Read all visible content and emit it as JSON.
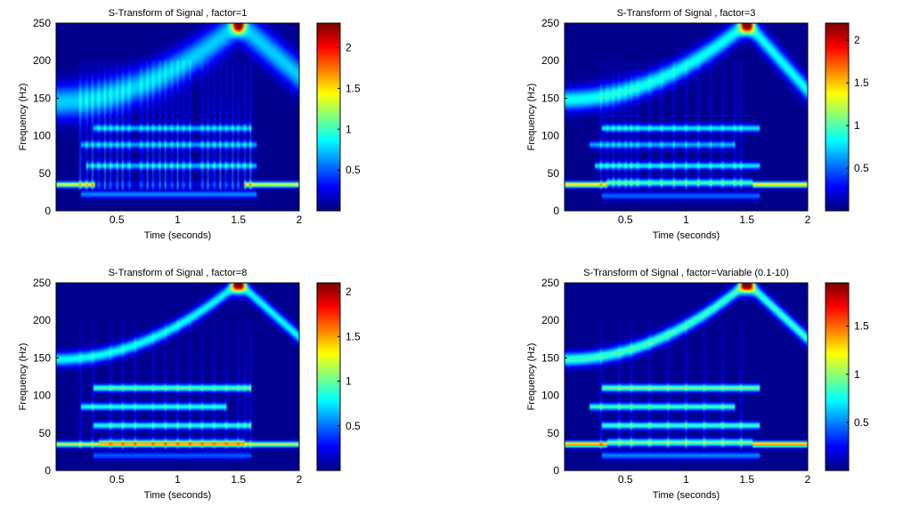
{
  "colormap": "jet",
  "colors": {
    "background": "#ffffff",
    "plot_background": "#00008f",
    "axis": "#000000"
  },
  "chart_data": [
    {
      "type": "heatmap",
      "title": "S-Transform of Signal , factor=1",
      "xlabel": "Time (seconds)",
      "ylabel": "Frequency (Hz)",
      "xlim": [
        0,
        2
      ],
      "ylim": [
        0,
        250
      ],
      "xticks": [
        0.5,
        1,
        1.5,
        2
      ],
      "yticks": [
        0,
        50,
        100,
        150,
        200,
        250
      ],
      "colorbar": {
        "ticks": [
          0.5,
          1,
          1.5,
          2
        ],
        "max": 2.3
      },
      "features": {
        "chirp": {
          "start_freq": 145,
          "end_freq": 250,
          "peak_time": 1.5,
          "descend_end_freq": 180,
          "width_hz": 35,
          "intensity": 0.75,
          "peak_intensity": 2.3
        },
        "tone": {
          "freq": 35,
          "start": 0,
          "end": 2,
          "gap": [
            0.32,
            1.55
          ],
          "intensity": 1.4
        },
        "bands": [
          {
            "freq": 110,
            "start": 0.3,
            "end": 1.6,
            "intensity": 0.7
          },
          {
            "freq": 88,
            "start": 0.2,
            "end": 1.65,
            "intensity": 0.65
          },
          {
            "freq": 60,
            "start": 0.25,
            "end": 1.65,
            "intensity": 0.7
          },
          {
            "freq": 22,
            "start": 0.2,
            "end": 1.65,
            "intensity": 0.6
          }
        ],
        "pulse_times": [
          0.2,
          0.25,
          0.3,
          0.35,
          0.4,
          0.45,
          0.5,
          0.55,
          0.6,
          0.7,
          0.75,
          0.8,
          0.85,
          0.9,
          0.95,
          1.0,
          1.05,
          1.1,
          1.2,
          1.25,
          1.3,
          1.35,
          1.4,
          1.45,
          1.5,
          1.55,
          1.6
        ],
        "pulse_intensity": 0.55
      }
    },
    {
      "type": "heatmap",
      "title": "S-Transform of Signal , factor=3",
      "xlabel": "Time (seconds)",
      "ylabel": "Frequency (Hz)",
      "xlim": [
        0,
        2
      ],
      "ylim": [
        0,
        250
      ],
      "xticks": [
        0.5,
        1,
        1.5,
        2
      ],
      "yticks": [
        0,
        50,
        100,
        150,
        200,
        250
      ],
      "colorbar": {
        "ticks": [
          0.5,
          1,
          1.5,
          2
        ],
        "max": 2.2
      },
      "features": {
        "chirp": {
          "start_freq": 148,
          "end_freq": 250,
          "peak_time": 1.5,
          "descend_end_freq": 160,
          "width_hz": 22,
          "intensity": 0.85,
          "peak_intensity": 2.2
        },
        "tone": {
          "freq": 35,
          "start": 0,
          "end": 2,
          "gap": [
            0.35,
            1.55
          ],
          "intensity": 1.5
        },
        "bands": [
          {
            "freq": 110,
            "start": 0.3,
            "end": 1.6,
            "intensity": 0.8
          },
          {
            "freq": 88,
            "start": 0.2,
            "end": 1.4,
            "intensity": 0.65
          },
          {
            "freq": 60,
            "start": 0.25,
            "end": 1.6,
            "intensity": 0.8
          },
          {
            "freq": 38,
            "start": 0.35,
            "end": 1.55,
            "intensity": 0.8
          },
          {
            "freq": 20,
            "start": 0.3,
            "end": 1.6,
            "intensity": 0.5
          }
        ],
        "pulse_times": [
          0.3,
          0.35,
          0.4,
          0.45,
          0.5,
          0.55,
          0.6,
          0.7,
          0.8,
          0.9,
          1.0,
          1.1,
          1.2,
          1.3,
          1.4,
          1.45
        ],
        "pulse_intensity": 0.35
      }
    },
    {
      "type": "heatmap",
      "title": "S-Transform of Signal , factor=8",
      "xlabel": "Time (seconds)",
      "ylabel": "Frequency (Hz)",
      "xlim": [
        0,
        2
      ],
      "ylim": [
        0,
        250
      ],
      "xticks": [
        0.5,
        1,
        1.5,
        2
      ],
      "yticks": [
        0,
        50,
        100,
        150,
        200,
        250
      ],
      "colorbar": {
        "ticks": [
          0.5,
          1,
          1.5,
          2
        ],
        "max": 2.1
      },
      "features": {
        "chirp": {
          "start_freq": 148,
          "end_freq": 250,
          "peak_time": 1.5,
          "descend_end_freq": 178,
          "width_hz": 14,
          "intensity": 0.8,
          "peak_intensity": 2.1
        },
        "tone": {
          "freq": 35,
          "start": 0,
          "end": 2,
          "gap": [
            -1,
            -1
          ],
          "intensity": 1.2
        },
        "bands": [
          {
            "freq": 110,
            "start": 0.3,
            "end": 1.6,
            "intensity": 0.95
          },
          {
            "freq": 85,
            "start": 0.2,
            "end": 1.4,
            "intensity": 0.85
          },
          {
            "freq": 60,
            "start": 0.3,
            "end": 1.6,
            "intensity": 0.85
          },
          {
            "freq": 38,
            "start": 0.35,
            "end": 1.55,
            "intensity": 0.55
          },
          {
            "freq": 20,
            "start": 0.3,
            "end": 1.6,
            "intensity": 0.45
          }
        ],
        "pulse_times": [
          0.2,
          0.3,
          0.45,
          0.55,
          0.65,
          0.8,
          0.9,
          1.0,
          1.1,
          1.2,
          1.3,
          1.4,
          1.5,
          1.55,
          1.6
        ],
        "pulse_intensity": 0.3
      }
    },
    {
      "type": "heatmap",
      "title": "S-Transform of Signal , factor=Variable (0.1-10)",
      "xlabel": "Time (seconds)",
      "ylabel": "Frequency (Hz)",
      "xlim": [
        0,
        2
      ],
      "ylim": [
        0,
        250
      ],
      "xticks": [
        0.5,
        1,
        1.5,
        2
      ],
      "yticks": [
        0,
        50,
        100,
        150,
        200,
        250
      ],
      "colorbar": {
        "ticks": [
          0.5,
          1,
          1.5
        ],
        "max": 1.95
      },
      "features": {
        "chirp": {
          "start_freq": 148,
          "end_freq": 250,
          "peak_time": 1.5,
          "descend_end_freq": 175,
          "width_hz": 14,
          "intensity": 0.85,
          "peak_intensity": 1.95
        },
        "tone": {
          "freq": 35,
          "start": 0,
          "end": 2,
          "gap": [
            0.35,
            1.55
          ],
          "intensity": 1.5
        },
        "bands": [
          {
            "freq": 110,
            "start": 0.3,
            "end": 1.6,
            "intensity": 0.95
          },
          {
            "freq": 85,
            "start": 0.2,
            "end": 1.4,
            "intensity": 0.85
          },
          {
            "freq": 60,
            "start": 0.3,
            "end": 1.6,
            "intensity": 0.85
          },
          {
            "freq": 38,
            "start": 0.35,
            "end": 1.55,
            "intensity": 0.8
          },
          {
            "freq": 20,
            "start": 0.3,
            "end": 1.6,
            "intensity": 0.5
          }
        ],
        "pulse_times": [
          0.3,
          0.45,
          0.55,
          0.7,
          0.85,
          1.0,
          1.15,
          1.3,
          1.45
        ],
        "pulse_intensity": 0.3
      }
    }
  ]
}
